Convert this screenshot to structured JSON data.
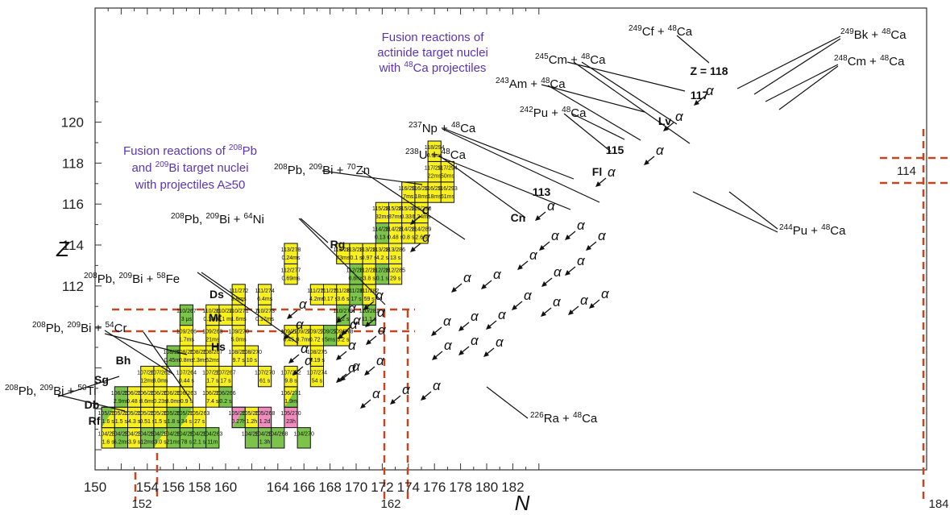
{
  "colors": {
    "yellow": "#f7ef1e",
    "green": "#7bc34a",
    "pink": "#f28cbf",
    "frame": "#111111",
    "heading": "#5a34b8",
    "magic": "#c0471f"
  },
  "axes": {
    "x_title": "N",
    "y_title": "Z",
    "x_ticks": [
      "150",
      "154",
      "156",
      "158",
      "160",
      "164",
      "166",
      "168",
      "170",
      "172",
      "174",
      "176",
      "178",
      "180",
      "182"
    ],
    "y_ticks": [
      "112",
      "114",
      "116",
      "118",
      "120"
    ],
    "x_magic": [
      "152",
      "162",
      "184"
    ],
    "y_magic": "114"
  },
  "headings": [
    [
      "Fusion reactions of ",
      "208",
      "Pb"
    ],
    [
      "and ",
      "209",
      "Bi target nuclei"
    ],
    [
      "with projectiles A≥50"
    ],
    [
      "Fusion reactions of"
    ],
    [
      "actinide target nuclei"
    ],
    [
      "with ",
      "48",
      "Ca projectiles"
    ]
  ],
  "reactions": [
    [
      "208",
      "Pb, ",
      "209",
      "Bi + ",
      "50",
      "Ti"
    ],
    [
      "208",
      "Pb, ",
      "209",
      "Bi + ",
      "54",
      "Cr"
    ],
    [
      "208",
      "Pb, ",
      "209",
      "Bi + ",
      "58",
      "Fe"
    ],
    [
      "208",
      "Pb, ",
      "209",
      "Bi + ",
      "64",
      "Ni"
    ],
    [
      "208",
      "Pb, ",
      "209",
      "Bi + ",
      "70",
      "Zn"
    ],
    [
      "238",
      "U + ",
      "48",
      "Ca"
    ],
    [
      "237",
      "Np + ",
      "48",
      "Ca"
    ],
    [
      "242",
      "Pu + ",
      "48",
      "Ca"
    ],
    [
      "243",
      "Am + ",
      "48",
      "Ca"
    ],
    [
      "245",
      "Cm + ",
      "48",
      "Ca"
    ],
    [
      "249",
      "Cf + ",
      "48",
      "Ca"
    ],
    [
      "249",
      "Bk + ",
      "48",
      "Ca"
    ],
    [
      "248",
      "Cm + ",
      "48",
      "Ca"
    ],
    [
      "244",
      "Pu + ",
      "48",
      "Ca"
    ],
    [
      "226",
      "Ra + ",
      "48",
      "Ca"
    ]
  ],
  "elements": [
    "Rf",
    "Db",
    "Sg",
    "Bh",
    "Hs",
    "Mt",
    "Ds",
    "Rg",
    "Cn",
    "113",
    "Fl",
    "115",
    "Lv",
    "117",
    "Z = 118"
  ],
  "alpha": "α",
  "nuclides": [
    [
      104,
      255,
      "1.6 s",
      "y"
    ],
    [
      104,
      256,
      "6.2ms",
      "g"
    ],
    [
      104,
      257,
      "3.9 s",
      "y"
    ],
    [
      104,
      258,
      "12ms",
      "g"
    ],
    [
      104,
      259,
      "3.0 s",
      "gy"
    ],
    [
      104,
      260,
      "21ms",
      "g"
    ],
    [
      104,
      261,
      "78 s",
      "g"
    ],
    [
      104,
      262,
      "2.1 s",
      "g"
    ],
    [
      104,
      263,
      "11m",
      "g"
    ],
    [
      104,
      266,
      "",
      "g"
    ],
    [
      104,
      267,
      "1.3h",
      "g"
    ],
    [
      104,
      268,
      "",
      "g"
    ],
    [
      104,
      270,
      "",
      "g"
    ],
    [
      105,
      256,
      "1.6 s",
      "gy"
    ],
    [
      105,
      257,
      "1.5 s",
      "y"
    ],
    [
      105,
      258,
      "4.3 s",
      "y"
    ],
    [
      105,
      259,
      "0.51 s",
      "y"
    ],
    [
      105,
      260,
      "1.5 s",
      "y"
    ],
    [
      105,
      261,
      "1.8 s",
      "g"
    ],
    [
      105,
      262,
      "34 s",
      "gy"
    ],
    [
      105,
      263,
      "27 s",
      "y"
    ],
    [
      105,
      266,
      "0.27h",
      "pg"
    ],
    [
      105,
      267,
      "1.2h",
      "y"
    ],
    [
      105,
      268,
      "1.2d",
      "p"
    ],
    [
      105,
      270,
      "23h",
      "p"
    ],
    [
      106,
      258,
      "2.9ms",
      "g"
    ],
    [
      106,
      259,
      "0.48 s",
      "y"
    ],
    [
      106,
      260,
      "3.6ms",
      "y"
    ],
    [
      106,
      261,
      "0.23s",
      "y"
    ],
    [
      106,
      262,
      "8.0ms",
      "y"
    ],
    [
      106,
      263,
      "0.9 s",
      "y"
    ],
    [
      106,
      265,
      "7.4 s",
      "y"
    ],
    [
      106,
      266,
      "0.2 s",
      "g"
    ],
    [
      106,
      271,
      "1.9m",
      "yg"
    ],
    [
      107,
      261,
      "12ms",
      "y"
    ],
    [
      107,
      262,
      "8.0ms",
      "y"
    ],
    [
      107,
      264,
      "0.44 s",
      "y"
    ],
    [
      107,
      266,
      "1.7 s",
      "y"
    ],
    [
      107,
      267,
      "17 s",
      "y"
    ],
    [
      107,
      270,
      "61 s",
      "y"
    ],
    [
      107,
      272,
      "9.8 s",
      "y"
    ],
    [
      107,
      274,
      "54 s",
      "y"
    ],
    [
      108,
      264,
      "0.45ms",
      "g"
    ],
    [
      108,
      265,
      "0.8ms",
      "y"
    ],
    [
      108,
      266,
      "2.3ms",
      "y"
    ],
    [
      108,
      267,
      "52ms",
      "y"
    ],
    [
      108,
      269,
      "9.7 s",
      "y"
    ],
    [
      108,
      270,
      "10 s",
      "y"
    ],
    [
      108,
      275,
      "0.19 s",
      "y"
    ],
    [
      109,
      266,
      "1.7ms",
      "y"
    ],
    [
      109,
      268,
      "21ms",
      "y"
    ],
    [
      109,
      270,
      "5.0ms",
      "y"
    ],
    [
      109,
      274,
      "0.45 s",
      "y"
    ],
    [
      109,
      275,
      "9.7ms",
      "y"
    ],
    [
      109,
      276,
      "0.72 s",
      "y"
    ],
    [
      109,
      277,
      "5ms",
      "g"
    ],
    [
      109,
      278,
      "5.2 s",
      "y"
    ],
    [
      110,
      267,
      "3 µs",
      "g"
    ],
    [
      110,
      269,
      "0.18ms",
      "y"
    ],
    [
      110,
      270,
      "0.1 ms",
      "y"
    ],
    [
      110,
      271,
      "1.6ms",
      "y"
    ],
    [
      110,
      273,
      "0.17ms",
      "y"
    ],
    [
      110,
      279,
      "0.2 s",
      "g"
    ],
    [
      110,
      281,
      "11.1 s",
      "g"
    ],
    [
      111,
      272,
      "3.8ms",
      "y"
    ],
    [
      111,
      274,
      "6.4ms",
      "y"
    ],
    [
      111,
      278,
      "4.2ms",
      "y"
    ],
    [
      111,
      279,
      "0.17 s",
      "y"
    ],
    [
      111,
      280,
      "3.6 s",
      "y"
    ],
    [
      111,
      281,
      "17 s",
      "g"
    ],
    [
      111,
      282,
      "59 s",
      "y"
    ],
    [
      112,
      277,
      "0.69ms",
      "y"
    ],
    [
      112,
      282,
      "0.8ms",
      "g"
    ],
    [
      112,
      283,
      "3.8 s",
      "y"
    ],
    [
      112,
      284,
      "0.1 s",
      "g"
    ],
    [
      112,
      285,
      "29 s",
      "y"
    ],
    [
      113,
      278,
      "0.24ms",
      "y"
    ],
    [
      113,
      282,
      "73ms",
      "y"
    ],
    [
      113,
      283,
      "0.1 s",
      "y"
    ],
    [
      113,
      284,
      "0.97 s",
      "y"
    ],
    [
      113,
      285,
      "4.2 s",
      "y"
    ],
    [
      113,
      286,
      "13 s",
      "y"
    ],
    [
      114,
      286,
      "0.13 s",
      "g"
    ],
    [
      114,
      287,
      "0.48 s",
      "y"
    ],
    [
      114,
      288,
      "0.8 s",
      "y"
    ],
    [
      114,
      289,
      "2.6 s",
      "y"
    ],
    [
      115,
      287,
      "32ms",
      "y"
    ],
    [
      115,
      288,
      "87ms",
      "y"
    ],
    [
      115,
      289,
      "0.33 s",
      "y"
    ],
    [
      115,
      290,
      "0.24ms",
      "y"
    ],
    [
      116,
      290,
      "7ms",
      "y"
    ],
    [
      116,
      291,
      "18ms",
      "y"
    ],
    [
      116,
      292,
      "18ms",
      "y"
    ],
    [
      116,
      293,
      "61ms",
      "y"
    ],
    [
      117,
      293,
      "22ms",
      "y"
    ],
    [
      117,
      294,
      "50ms",
      "y"
    ],
    [
      118,
      294,
      "0.9ms",
      "y"
    ]
  ]
}
